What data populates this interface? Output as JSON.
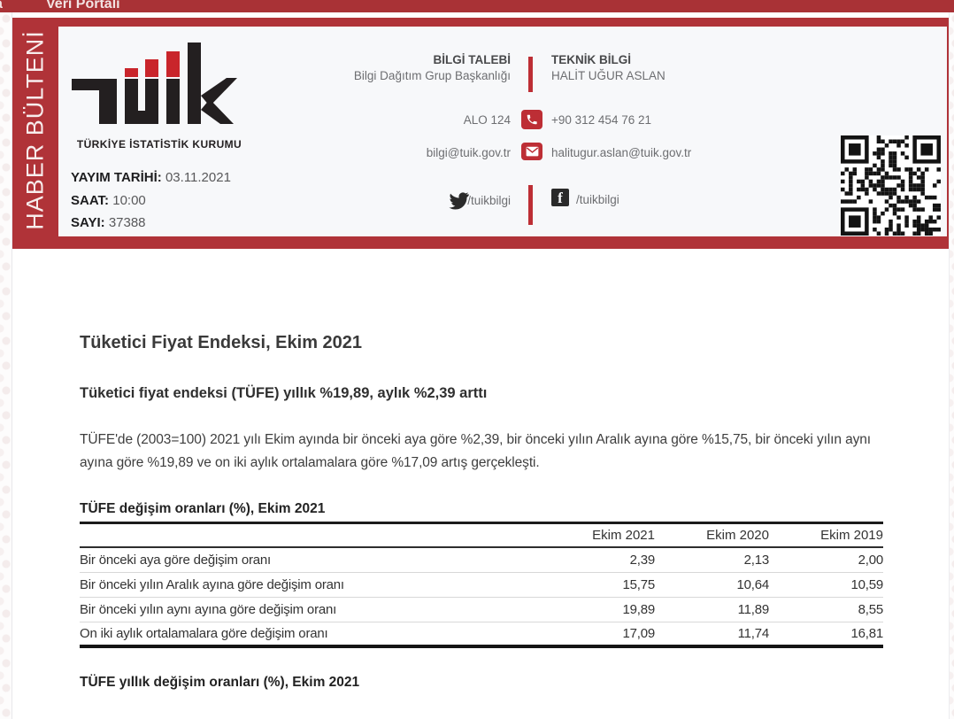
{
  "nav": {
    "home_partial": "a",
    "portal": "Veri Portalı"
  },
  "banner": {
    "ribbon_text": "HABER BÜLTENİ",
    "org_name": "TÜRKİYE İSTATİSTİK KURUMU",
    "meta": [
      {
        "label": "YAYIM TARİHİ:",
        "value": "03.11.2021"
      },
      {
        "label": "SAAT:",
        "value": "10:00"
      },
      {
        "label": "SAYI:",
        "value": "37388"
      }
    ],
    "contact": {
      "left": {
        "heading": "BİLGİ TALEBİ",
        "name": "Bilgi Dağıtım Grup Başkanlığı",
        "phone": "ALO 124",
        "email": "bilgi@tuik.gov.tr",
        "social": "/tuikbilgi"
      },
      "right": {
        "heading": "TEKNİK BİLGİ",
        "name": "HALİT UĞUR ASLAN",
        "phone": "+90 312 454 76 21",
        "email": "halitugur.aslan@tuik.gov.tr",
        "social": "/tuikbilgi"
      }
    },
    "colors": {
      "band_red": "#b03338",
      "nav_red": "#a93236",
      "accent_red": "#bd2e35",
      "logo_dark": "#231f20",
      "logo_red": "#c9252b"
    }
  },
  "article": {
    "title": "Tüketici Fiyat Endeksi, Ekim 2021",
    "subtitle": "Tüketici fiyat endeksi (TÜFE) yıllık %19,89, aylık %2,39 arttı",
    "paragraph": "TÜFE'de (2003=100) 2021 yılı Ekim ayında bir önceki aya göre %2,39, bir önceki yılın Aralık ayına göre %15,75, bir önceki yılın aynı ayına göre %19,89 ve on iki aylık ortalamalara göre %17,09 artış gerçekleşti.",
    "next_section_title": "TÜFE yıllık değişim oranları (%), Ekim 2021"
  },
  "table": {
    "title": "TÜFE değişim oranları (%), Ekim 2021",
    "columns": [
      "Ekim 2021",
      "Ekim 2020",
      "Ekim 2019"
    ],
    "rows": [
      {
        "label": "Bir önceki aya göre değişim oranı",
        "values": [
          "2,39",
          "2,13",
          "2,00"
        ]
      },
      {
        "label": "Bir önceki yılın Aralık ayına göre değişim oranı",
        "values": [
          "15,75",
          "10,64",
          "10,59"
        ]
      },
      {
        "label": "Bir önceki yılın aynı ayına göre değişim oranı",
        "values": [
          "19,89",
          "11,89",
          "8,55"
        ]
      },
      {
        "label": "On iki aylık ortalamalara göre değişim oranı",
        "values": [
          "17,09",
          "11,74",
          "16,81"
        ]
      }
    ]
  }
}
